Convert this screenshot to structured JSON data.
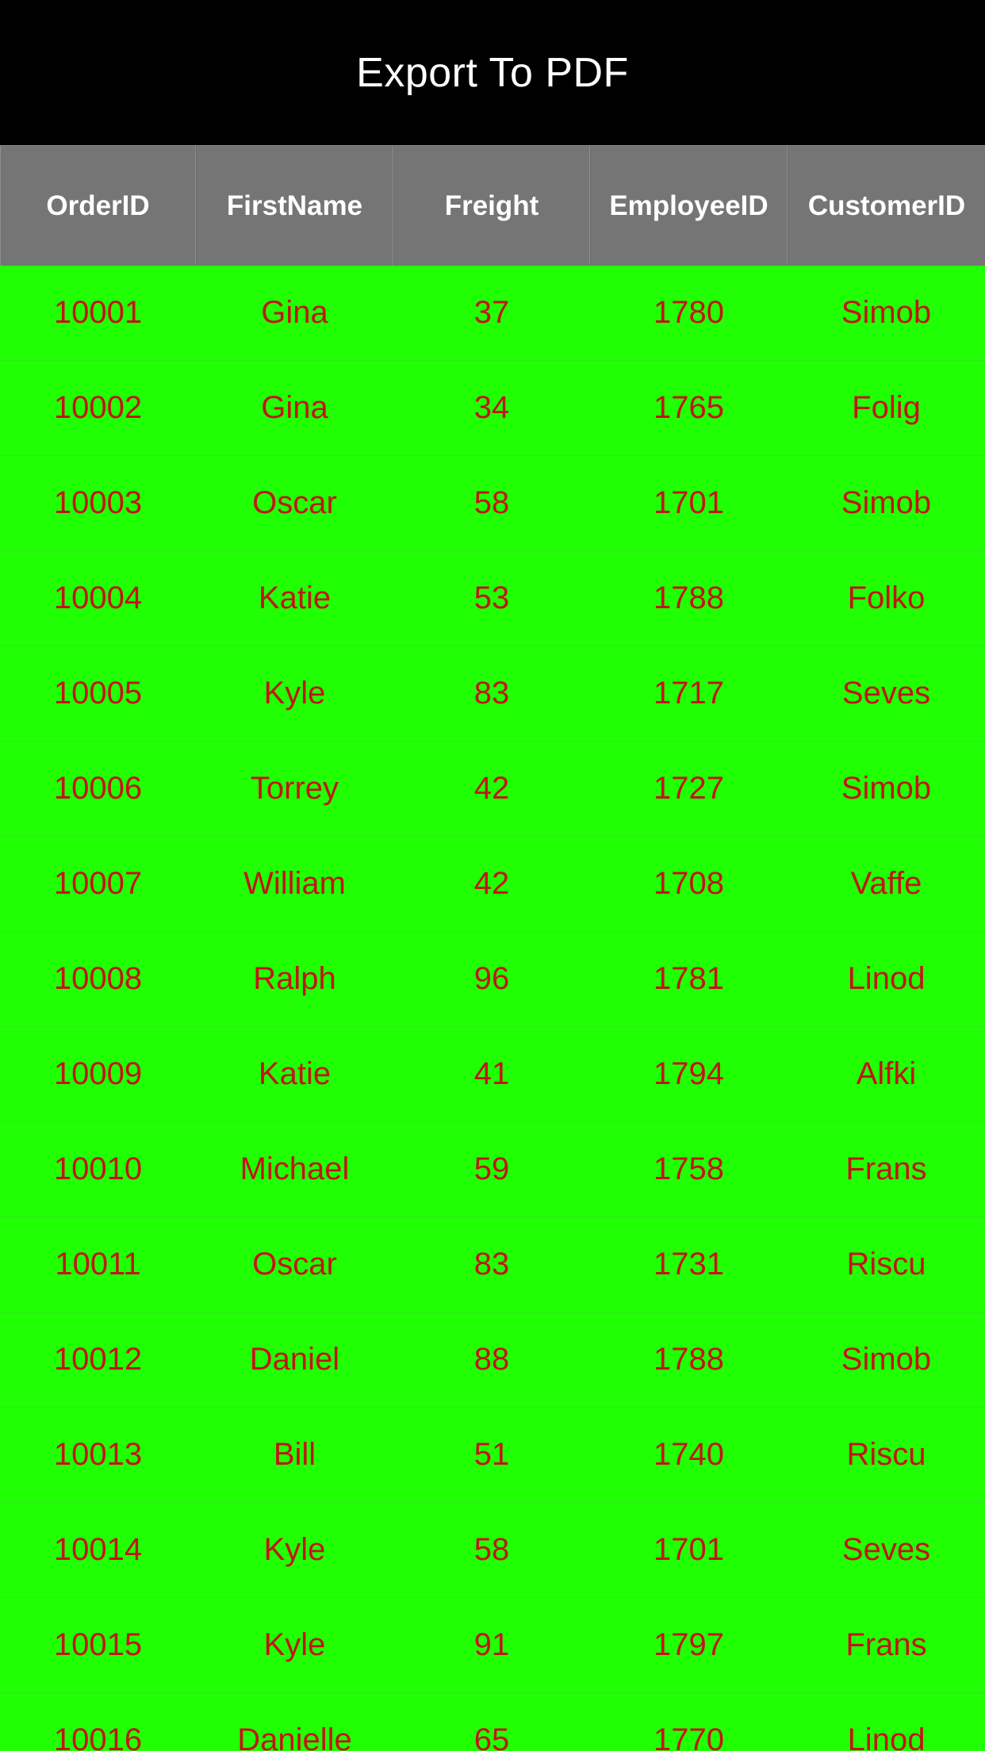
{
  "topbar": {
    "title": "Export To PDF"
  },
  "grid": {
    "columns": [
      "OrderID",
      "FirstName",
      "Freight",
      "EmployeeID",
      "CustomerID"
    ],
    "rows": [
      [
        "10001",
        "Gina",
        "37",
        "1780",
        "Simob"
      ],
      [
        "10002",
        "Gina",
        "34",
        "1765",
        "Folig"
      ],
      [
        "10003",
        "Oscar",
        "58",
        "1701",
        "Simob"
      ],
      [
        "10004",
        "Katie",
        "53",
        "1788",
        "Folko"
      ],
      [
        "10005",
        "Kyle",
        "83",
        "1717",
        "Seves"
      ],
      [
        "10006",
        "Torrey",
        "42",
        "1727",
        "Simob"
      ],
      [
        "10007",
        "William",
        "42",
        "1708",
        "Vaffe"
      ],
      [
        "10008",
        "Ralph",
        "96",
        "1781",
        "Linod"
      ],
      [
        "10009",
        "Katie",
        "41",
        "1794",
        "Alfki"
      ],
      [
        "10010",
        "Michael",
        "59",
        "1758",
        "Frans"
      ],
      [
        "10011",
        "Oscar",
        "83",
        "1731",
        "Riscu"
      ],
      [
        "10012",
        "Daniel",
        "88",
        "1788",
        "Simob"
      ],
      [
        "10013",
        "Bill",
        "51",
        "1740",
        "Riscu"
      ],
      [
        "10014",
        "Kyle",
        "58",
        "1701",
        "Seves"
      ],
      [
        "10015",
        "Kyle",
        "91",
        "1797",
        "Frans"
      ],
      [
        "10016",
        "Danielle",
        "65",
        "1770",
        "Linod"
      ]
    ]
  },
  "colors": {
    "topbar_bg": "#000000",
    "header_bg": "#757575",
    "row_bg": "#21ff04",
    "cell_text": "#c21515",
    "header_text": "#ffffff"
  }
}
